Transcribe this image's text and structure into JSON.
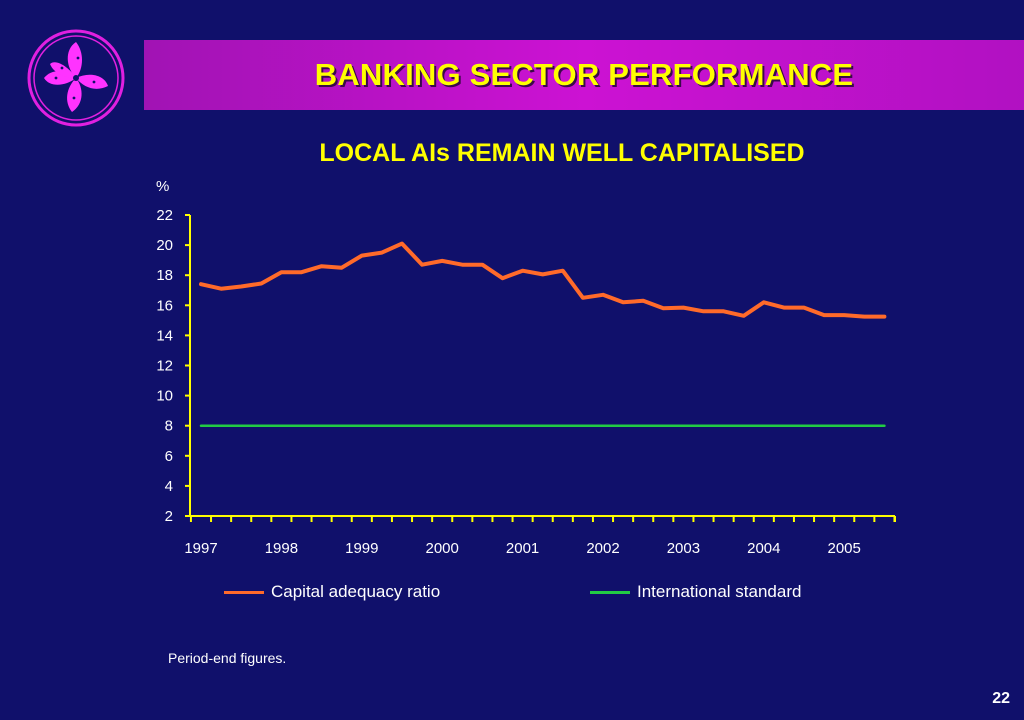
{
  "header": {
    "title": "BANKING SECTOR PERFORMANCE"
  },
  "colors": {
    "background": "#10106b",
    "title_bar": "#c412cc",
    "title_text": "#ffff00",
    "axis": "#ffff00",
    "series_capital": "#ff6a2a",
    "series_standard": "#22cc44"
  },
  "logo": {
    "icon": "bauhinia-flower-icon"
  },
  "chart_data": {
    "type": "line",
    "title": "LOCAL AIs REMAIN WELL CAPITALISED",
    "ylabel": "%",
    "xlabel": "",
    "ylim": [
      2,
      22
    ],
    "yticks": [
      "22",
      "20",
      "18",
      "16",
      "14",
      "12",
      "10",
      "8",
      "6",
      "4",
      "2"
    ],
    "year_labels": [
      "1997",
      "1998",
      "1999",
      "2000",
      "2001",
      "2002",
      "2003",
      "2004",
      "2005"
    ],
    "quarters_per_year": 4,
    "grid": false,
    "legend_position": "bottom",
    "series": [
      {
        "name": "Capital adequacy ratio",
        "values": [
          17.4,
          17.1,
          17.25,
          17.45,
          18.2,
          18.2,
          18.6,
          18.5,
          19.3,
          19.5,
          20.1,
          18.7,
          18.95,
          18.7,
          18.7,
          17.8,
          18.3,
          18.05,
          18.3,
          16.5,
          16.7,
          16.2,
          16.3,
          15.8,
          15.85,
          15.6,
          15.6,
          15.3,
          16.2,
          15.85,
          15.85,
          15.35,
          15.35,
          15.25,
          15.25
        ]
      },
      {
        "name": "International standard",
        "values": [
          8,
          8,
          8,
          8,
          8,
          8,
          8,
          8,
          8,
          8,
          8,
          8,
          8,
          8,
          8,
          8,
          8,
          8,
          8,
          8,
          8,
          8,
          8,
          8,
          8,
          8,
          8,
          8,
          8,
          8,
          8,
          8,
          8,
          8,
          8
        ]
      }
    ]
  },
  "footnote": "Period-end figures.",
  "page_number": "22"
}
